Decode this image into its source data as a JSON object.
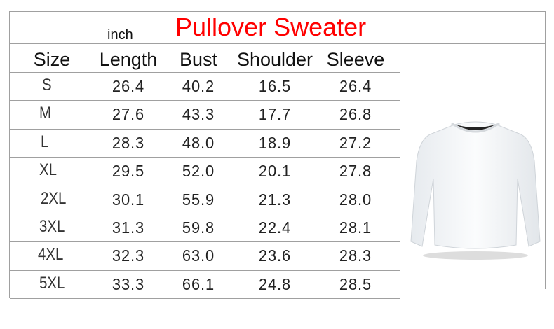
{
  "title": "Pullover Sweater",
  "unit": "inch",
  "columns": [
    "Size",
    "Length",
    "Bust",
    "Shoulder",
    "Sleeve"
  ],
  "rows": [
    [
      "S",
      "26.4",
      "40.2",
      "16.5",
      "26.4"
    ],
    [
      "M",
      "27.6",
      "43.3",
      "17.7",
      "26.8"
    ],
    [
      "L",
      "28.3",
      "48.0",
      "18.9",
      "27.2"
    ],
    [
      "XL",
      "29.5",
      "52.0",
      "20.1",
      "27.8"
    ],
    [
      "2XL",
      "30.1",
      "55.9",
      "21.3",
      "28.0"
    ],
    [
      "3XL",
      "31.3",
      "59.8",
      "22.4",
      "28.1"
    ],
    [
      "4XL",
      "32.3",
      "63.0",
      "23.6",
      "28.3"
    ],
    [
      "5XL",
      "33.3",
      "66.1",
      "24.8",
      "28.5"
    ]
  ],
  "colors": {
    "title": "#ff0000",
    "text": "#222222",
    "rule": "#a0a0a0"
  },
  "image": "white-pullover-sweater"
}
